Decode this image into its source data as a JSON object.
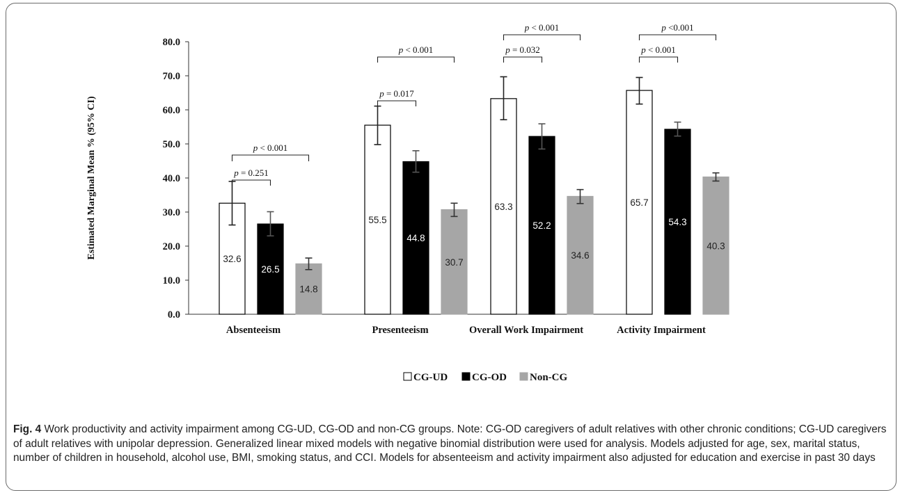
{
  "chart_data": {
    "type": "bar",
    "ylabel": "Estimated Marginal Mean % (95% CI)",
    "ylim": [
      0,
      80
    ],
    "yticks": [
      "0.0",
      "10.0",
      "20.0",
      "30.0",
      "40.0",
      "50.0",
      "60.0",
      "70.0",
      "80.0"
    ],
    "grid": false,
    "legend_position": "bottom-center",
    "categories": [
      "Absenteeism",
      "Presenteeism",
      "Overall Work Impairment",
      "Activity Impairment"
    ],
    "series": [
      {
        "name": "CG-UD",
        "color": "#ffffff",
        "label_color": "#222222",
        "values": [
          32.6,
          55.5,
          63.3,
          65.7
        ],
        "ci_low": [
          26.2,
          49.8,
          57.1,
          61.7
        ],
        "ci_high": [
          39.0,
          61.1,
          69.7,
          69.5
        ],
        "labels": [
          "32.6",
          "55.5",
          "63.3",
          "65.7"
        ]
      },
      {
        "name": "CG-OD",
        "color": "#000000",
        "label_color": "#ffffff",
        "values": [
          26.5,
          44.8,
          52.2,
          54.3
        ],
        "ci_low": [
          23.0,
          41.7,
          48.5,
          52.3
        ],
        "ci_high": [
          30.1,
          48.0,
          55.9,
          56.4
        ],
        "labels": [
          "26.5",
          "44.8",
          "52.2",
          "54.3"
        ]
      },
      {
        "name": "Non-CG",
        "color": "#a6a6a6",
        "label_color": "#222222",
        "values": [
          14.8,
          30.7,
          34.6,
          40.3
        ],
        "ci_low": [
          13.1,
          28.7,
          32.5,
          39.1
        ],
        "ci_high": [
          16.5,
          32.6,
          36.6,
          41.5
        ],
        "labels": [
          "14.8",
          "30.7",
          "34.6",
          "40.3"
        ]
      }
    ],
    "annotations": [
      {
        "category": 0,
        "pvalue": "= 0.251",
        "pairs": "CG-UD vs CG-OD"
      },
      {
        "category": 0,
        "pvalue": "< 0.001",
        "pairs": "CG-UD vs Non-CG"
      },
      {
        "category": 1,
        "pvalue": "= 0.017",
        "pairs": "CG-UD vs CG-OD"
      },
      {
        "category": 1,
        "pvalue": "< 0.001",
        "pairs": "CG-UD vs Non-CG"
      },
      {
        "category": 2,
        "pvalue": "= 0.032",
        "pairs": "CG-UD vs CG-OD"
      },
      {
        "category": 2,
        "pvalue": "< 0.001",
        "pairs": "CG-UD vs Non-CG"
      },
      {
        "category": 3,
        "pvalue": "< 0.001",
        "pairs": "CG-UD vs CG-OD"
      },
      {
        "category": 3,
        "pvalue": "<0.001",
        "pairs": "CG-UD vs Non-CG"
      }
    ]
  },
  "caption": {
    "label": "Fig. 4",
    "text": " Work productivity and activity impairment among CG-UD, CG-OD and non-CG groups. Note: CG-OD caregivers of adult relatives with other chronic conditions; CG-UD caregivers of adult relatives with unipolar depression. Generalized linear mixed models with negative binomial distribution were used for analysis. Models adjusted for age, sex, marital status, number of children in household, alcohol use, BMI, smoking status, and CCI. Models for absenteeism and activity impairment also adjusted for education and exercise in past 30 days"
  }
}
